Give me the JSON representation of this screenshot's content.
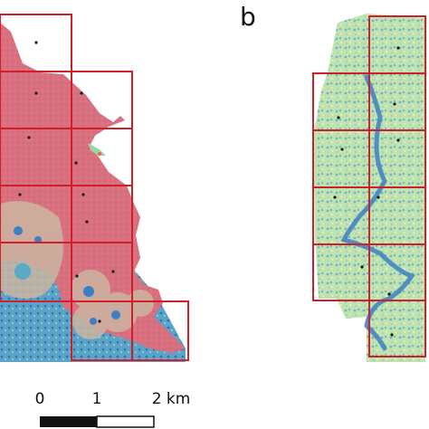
{
  "panels": [
    {
      "label": ""
    },
    {
      "label": "b"
    }
  ],
  "scale_bar": {
    "ticks": [
      "0",
      "1",
      "2 km"
    ]
  },
  "colors": {
    "grid_box": "#d11f2a",
    "sample_point": "#1a1a1a",
    "urban_fill": "#d9707f",
    "buffer_fill": "#c9b49e",
    "vegetation": "#9fd3a4",
    "water": "#3d7fc4",
    "scale_black": "#111111",
    "scale_white": "#ffffff"
  }
}
